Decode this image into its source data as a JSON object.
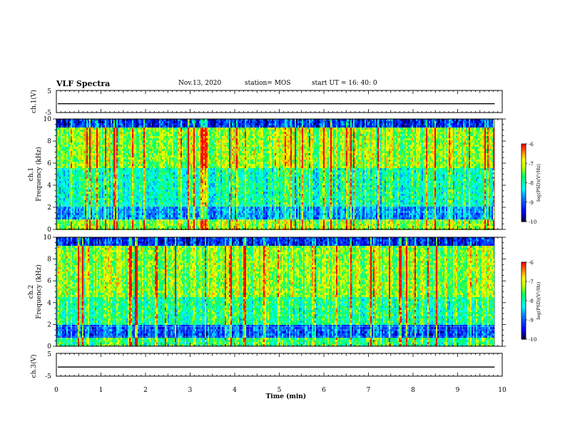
{
  "header": {
    "title": "VLF Spectra",
    "date": "Nov.13, 2020",
    "station": "station= MOS",
    "start_ut": "start  UT =   16: 40: 0"
  },
  "chart_data": [
    {
      "type": "line",
      "panel": "ch1-waveform",
      "ylabel": "ch.1(V)",
      "ylim": [
        -5,
        5
      ],
      "y_ticks": [
        "5",
        "-5"
      ],
      "xlim": [
        0,
        10
      ],
      "series": [
        {
          "values_constant": -1
        }
      ]
    },
    {
      "type": "heatmap",
      "panel": "ch1-spectrogram",
      "ylabel": "ch.1\nFrequency (kHz)",
      "ylabel_lines": [
        "ch.1",
        "Frequency (kHz)"
      ],
      "ylim": [
        0,
        10
      ],
      "y_ticks": [
        "0",
        "2",
        "4",
        "6",
        "8",
        "10"
      ],
      "xlim": [
        0,
        10
      ],
      "data_xmax": 9.83,
      "colorbar": {
        "label": "log(PSD)(V²/Hz)",
        "range": [
          -10,
          -6
        ],
        "ticks": [
          "-6",
          "-7",
          "-8",
          "-9",
          "-10"
        ]
      }
    },
    {
      "type": "heatmap",
      "panel": "ch2-spectrogram",
      "ylabel": "ch.2\nFrequency (kHz)",
      "ylabel_lines": [
        "ch.2",
        "Frequency (kHz)"
      ],
      "ylim": [
        0,
        10
      ],
      "y_ticks": [
        "0",
        "2",
        "4",
        "6",
        "8",
        "10"
      ],
      "xlim": [
        0,
        10
      ],
      "data_xmax": 9.83,
      "colorbar": {
        "label": "log(PSD)(V²/Hz)",
        "range": [
          -10,
          -6
        ],
        "ticks": [
          "-6",
          "-7",
          "-8",
          "-9",
          "-10"
        ]
      }
    },
    {
      "type": "line",
      "panel": "ch3-waveform",
      "ylabel": "ch.3(V)",
      "ylim": [
        -5,
        5
      ],
      "y_ticks": [
        "5",
        "-5"
      ],
      "xlim": [
        0,
        10
      ],
      "x_ticks": [
        "0",
        "1",
        "2",
        "3",
        "4",
        "5",
        "6",
        "7",
        "8",
        "9",
        "10"
      ],
      "xlabel": "Time (min)",
      "series": [
        {
          "values_constant": -1
        }
      ]
    }
  ],
  "colors": {
    "colormap": [
      "#000000",
      "#0000ff",
      "#00ffff",
      "#00ff00",
      "#ffff00",
      "#ff0000",
      "#ffffff"
    ]
  }
}
